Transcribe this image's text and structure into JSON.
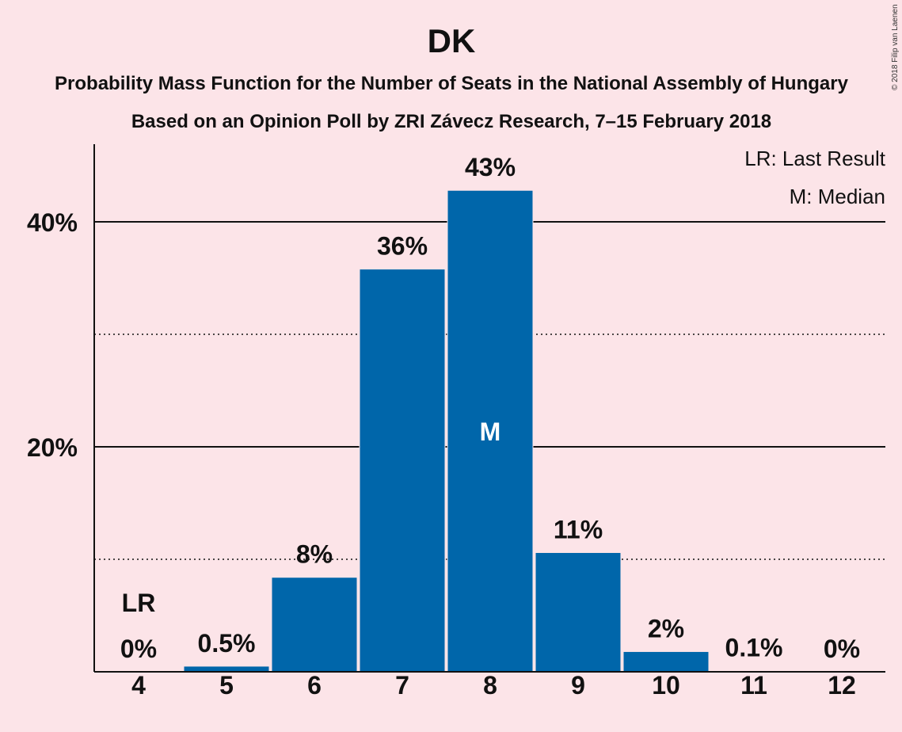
{
  "chart_data": {
    "type": "bar",
    "title": "DK",
    "subtitle_1": "Probability Mass Function for the Number of Seats in the National Assembly of Hungary",
    "subtitle_2": "Based on an Opinion Poll by ZRI Závecz Research, 7–15 February 2018",
    "categories": [
      "4",
      "5",
      "6",
      "7",
      "8",
      "9",
      "10",
      "11",
      "12"
    ],
    "values": [
      0,
      0.5,
      8.4,
      35.8,
      42.8,
      10.6,
      1.8,
      0.1,
      0
    ],
    "value_labels": [
      "0%",
      "0.5%",
      "8%",
      "36%",
      "43%",
      "11%",
      "2%",
      "0.1%",
      "0%"
    ],
    "ylim": [
      0,
      47
    ],
    "yticks": [
      {
        "value": 20,
        "label": "20%"
      },
      {
        "value": 40,
        "label": "40%"
      }
    ],
    "dotted_gridlines": [
      10,
      30
    ],
    "last_result": {
      "category": "4",
      "marker": "LR"
    },
    "median": {
      "category": "8",
      "marker": "M"
    },
    "legend": {
      "lr": "LR: Last Result",
      "median": "M: Median",
      "placement": "top-right"
    },
    "copyright": "© 2018 Filip van Laenen",
    "bar_color": "#0066aa",
    "background_color": "#fce4e8"
  }
}
